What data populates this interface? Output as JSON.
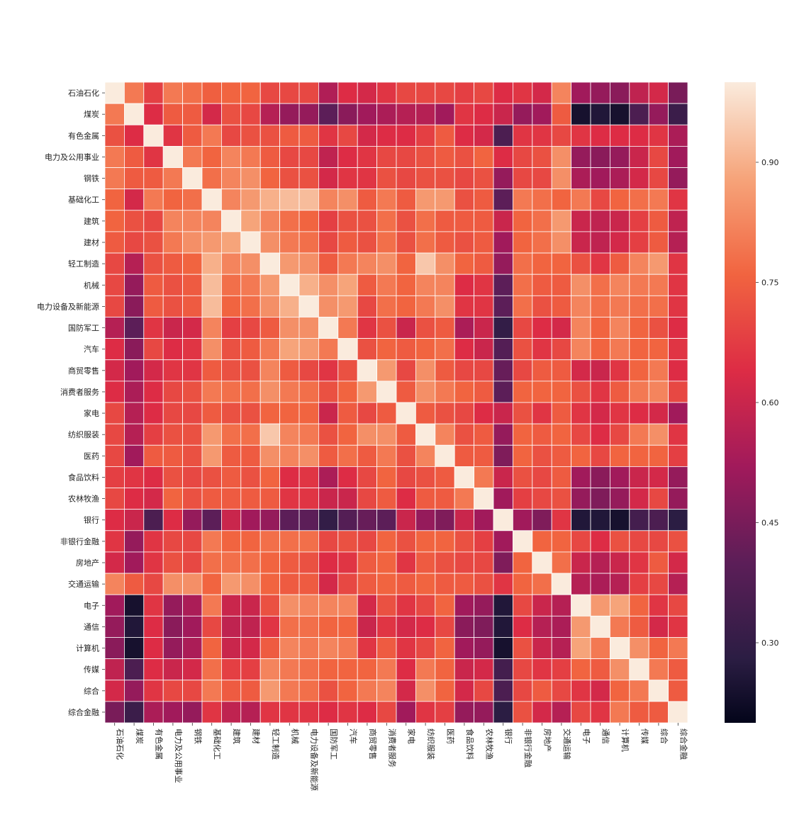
{
  "chart_data": {
    "type": "heatmap",
    "title": "",
    "xlabel": "",
    "ylabel": "",
    "labels": [
      "石油石化",
      "煤炭",
      "有色金属",
      "电力及公用事业",
      "钢铁",
      "基础化工",
      "建筑",
      "建材",
      "轻工制造",
      "机械",
      "电力设备及新能源",
      "国防军工",
      "汽车",
      "商贸零售",
      "消费者服务",
      "家电",
      "纺织服装",
      "医药",
      "食品饮料",
      "农林牧渔",
      "银行",
      "非银行金融",
      "房地产",
      "交通运输",
      "电子",
      "通信",
      "计算机",
      "传媒",
      "综合",
      "综合金融"
    ],
    "colorbar_range": [
      0.2,
      1.0
    ],
    "colorbar_ticks": [
      "0.30",
      "0.45",
      "0.60",
      "0.75",
      "0.90"
    ],
    "colorbar_tick_values": [
      0.3,
      0.45,
      0.6,
      0.75,
      0.9
    ],
    "colormap": "rocket",
    "grid_lines": true,
    "values": [
      [
        1.0,
        0.8,
        0.68,
        0.8,
        0.78,
        0.75,
        0.76,
        0.76,
        0.7,
        0.7,
        0.7,
        0.55,
        0.64,
        0.62,
        0.66,
        0.7,
        0.7,
        0.7,
        0.68,
        0.7,
        0.64,
        0.66,
        0.62,
        0.82,
        0.52,
        0.5,
        0.48,
        0.58,
        0.62,
        0.45
      ],
      [
        0.8,
        1.0,
        0.64,
        0.74,
        0.74,
        0.62,
        0.72,
        0.7,
        0.56,
        0.5,
        0.5,
        0.4,
        0.48,
        0.52,
        0.54,
        0.56,
        0.56,
        0.52,
        0.66,
        0.64,
        0.6,
        0.5,
        0.52,
        0.74,
        0.24,
        0.26,
        0.24,
        0.36,
        0.5,
        0.32
      ],
      [
        0.72,
        0.64,
        1.0,
        0.66,
        0.74,
        0.8,
        0.7,
        0.72,
        0.72,
        0.74,
        0.74,
        0.66,
        0.7,
        0.62,
        0.64,
        0.64,
        0.68,
        0.74,
        0.64,
        0.62,
        0.36,
        0.66,
        0.66,
        0.7,
        0.66,
        0.64,
        0.64,
        0.64,
        0.66,
        0.54
      ],
      [
        0.8,
        0.74,
        0.66,
        1.0,
        0.8,
        0.76,
        0.82,
        0.8,
        0.74,
        0.7,
        0.7,
        0.58,
        0.64,
        0.66,
        0.7,
        0.7,
        0.72,
        0.74,
        0.72,
        0.76,
        0.64,
        0.7,
        0.72,
        0.84,
        0.5,
        0.48,
        0.5,
        0.6,
        0.7,
        0.52
      ],
      [
        0.8,
        0.74,
        0.74,
        0.8,
        1.0,
        0.78,
        0.82,
        0.84,
        0.76,
        0.72,
        0.72,
        0.62,
        0.66,
        0.66,
        0.72,
        0.7,
        0.72,
        0.72,
        0.7,
        0.72,
        0.5,
        0.7,
        0.7,
        0.84,
        0.54,
        0.52,
        0.54,
        0.62,
        0.7,
        0.5
      ],
      [
        0.76,
        0.62,
        0.8,
        0.76,
        0.78,
        1.0,
        0.82,
        0.86,
        0.9,
        0.92,
        0.92,
        0.82,
        0.84,
        0.74,
        0.8,
        0.74,
        0.86,
        0.86,
        0.72,
        0.74,
        0.4,
        0.8,
        0.78,
        0.76,
        0.8,
        0.7,
        0.76,
        0.78,
        0.8,
        0.66
      ],
      [
        0.76,
        0.72,
        0.7,
        0.82,
        0.82,
        0.82,
        1.0,
        0.88,
        0.82,
        0.78,
        0.76,
        0.68,
        0.72,
        0.72,
        0.78,
        0.72,
        0.78,
        0.74,
        0.74,
        0.74,
        0.6,
        0.76,
        0.78,
        0.86,
        0.6,
        0.58,
        0.6,
        0.68,
        0.74,
        0.58
      ],
      [
        0.74,
        0.7,
        0.72,
        0.8,
        0.84,
        0.86,
        0.88,
        1.0,
        0.84,
        0.8,
        0.78,
        0.7,
        0.74,
        0.72,
        0.78,
        0.72,
        0.78,
        0.74,
        0.72,
        0.74,
        0.52,
        0.76,
        0.78,
        0.84,
        0.6,
        0.58,
        0.62,
        0.68,
        0.74,
        0.56
      ],
      [
        0.7,
        0.56,
        0.72,
        0.74,
        0.76,
        0.9,
        0.82,
        0.84,
        1.0,
        0.86,
        0.84,
        0.74,
        0.8,
        0.82,
        0.84,
        0.76,
        0.94,
        0.84,
        0.76,
        0.74,
        0.5,
        0.78,
        0.76,
        0.76,
        0.72,
        0.66,
        0.74,
        0.82,
        0.86,
        0.66
      ],
      [
        0.7,
        0.5,
        0.74,
        0.72,
        0.74,
        0.92,
        0.78,
        0.8,
        0.86,
        1.0,
        0.9,
        0.84,
        0.88,
        0.74,
        0.8,
        0.76,
        0.82,
        0.82,
        0.64,
        0.66,
        0.4,
        0.78,
        0.74,
        0.74,
        0.84,
        0.78,
        0.82,
        0.8,
        0.8,
        0.66
      ],
      [
        0.7,
        0.48,
        0.74,
        0.72,
        0.74,
        0.92,
        0.76,
        0.78,
        0.84,
        0.9,
        1.0,
        0.84,
        0.86,
        0.7,
        0.78,
        0.76,
        0.8,
        0.84,
        0.66,
        0.66,
        0.4,
        0.78,
        0.72,
        0.74,
        0.82,
        0.78,
        0.8,
        0.78,
        0.78,
        0.66
      ],
      [
        0.56,
        0.4,
        0.66,
        0.6,
        0.62,
        0.82,
        0.68,
        0.7,
        0.74,
        0.84,
        0.84,
        1.0,
        0.8,
        0.66,
        0.72,
        0.6,
        0.72,
        0.74,
        0.54,
        0.6,
        0.3,
        0.7,
        0.64,
        0.62,
        0.82,
        0.76,
        0.82,
        0.76,
        0.72,
        0.64
      ],
      [
        0.64,
        0.48,
        0.7,
        0.64,
        0.66,
        0.84,
        0.72,
        0.74,
        0.8,
        0.88,
        0.86,
        0.8,
        1.0,
        0.72,
        0.76,
        0.74,
        0.76,
        0.78,
        0.64,
        0.6,
        0.38,
        0.72,
        0.66,
        0.7,
        0.82,
        0.76,
        0.8,
        0.76,
        0.76,
        0.66
      ],
      [
        0.62,
        0.52,
        0.62,
        0.66,
        0.66,
        0.74,
        0.72,
        0.72,
        0.82,
        0.74,
        0.7,
        0.66,
        0.72,
        1.0,
        0.86,
        0.7,
        0.84,
        0.74,
        0.7,
        0.7,
        0.42,
        0.7,
        0.74,
        0.74,
        0.62,
        0.6,
        0.66,
        0.76,
        0.8,
        0.64
      ],
      [
        0.64,
        0.54,
        0.64,
        0.7,
        0.72,
        0.8,
        0.78,
        0.78,
        0.84,
        0.8,
        0.78,
        0.72,
        0.76,
        0.86,
        1.0,
        0.74,
        0.84,
        0.8,
        0.76,
        0.74,
        0.4,
        0.76,
        0.76,
        0.76,
        0.72,
        0.66,
        0.74,
        0.8,
        0.82,
        0.7
      ],
      [
        0.7,
        0.56,
        0.64,
        0.7,
        0.7,
        0.74,
        0.72,
        0.72,
        0.76,
        0.76,
        0.76,
        0.6,
        0.74,
        0.7,
        0.74,
        1.0,
        0.74,
        0.72,
        0.7,
        0.64,
        0.6,
        0.72,
        0.66,
        0.74,
        0.66,
        0.62,
        0.66,
        0.64,
        0.62,
        0.52
      ],
      [
        0.7,
        0.56,
        0.68,
        0.72,
        0.72,
        0.86,
        0.78,
        0.78,
        0.94,
        0.82,
        0.8,
        0.72,
        0.76,
        0.84,
        0.84,
        0.74,
        1.0,
        0.82,
        0.72,
        0.74,
        0.5,
        0.76,
        0.74,
        0.76,
        0.7,
        0.64,
        0.7,
        0.8,
        0.84,
        0.66
      ],
      [
        0.7,
        0.52,
        0.74,
        0.74,
        0.72,
        0.86,
        0.74,
        0.74,
        0.84,
        0.82,
        0.84,
        0.74,
        0.78,
        0.74,
        0.8,
        0.72,
        0.82,
        1.0,
        0.74,
        0.74,
        0.46,
        0.76,
        0.72,
        0.74,
        0.76,
        0.7,
        0.76,
        0.76,
        0.76,
        0.68
      ],
      [
        0.68,
        0.66,
        0.64,
        0.72,
        0.7,
        0.72,
        0.74,
        0.72,
        0.76,
        0.64,
        0.66,
        0.54,
        0.64,
        0.7,
        0.76,
        0.7,
        0.72,
        0.74,
        1.0,
        0.8,
        0.6,
        0.72,
        0.7,
        0.74,
        0.52,
        0.48,
        0.52,
        0.6,
        0.62,
        0.5
      ],
      [
        0.7,
        0.64,
        0.62,
        0.76,
        0.72,
        0.74,
        0.74,
        0.74,
        0.74,
        0.66,
        0.66,
        0.6,
        0.6,
        0.7,
        0.74,
        0.64,
        0.74,
        0.74,
        0.8,
        1.0,
        0.52,
        0.68,
        0.7,
        0.72,
        0.5,
        0.46,
        0.5,
        0.62,
        0.7,
        0.5
      ],
      [
        0.64,
        0.6,
        0.36,
        0.64,
        0.5,
        0.4,
        0.6,
        0.52,
        0.5,
        0.4,
        0.4,
        0.3,
        0.38,
        0.42,
        0.4,
        0.6,
        0.5,
        0.46,
        0.6,
        0.52,
        1.0,
        0.52,
        0.46,
        0.66,
        0.26,
        0.26,
        0.24,
        0.34,
        0.36,
        0.28
      ],
      [
        0.66,
        0.5,
        0.66,
        0.7,
        0.7,
        0.8,
        0.76,
        0.76,
        0.78,
        0.78,
        0.78,
        0.7,
        0.72,
        0.7,
        0.76,
        0.72,
        0.76,
        0.76,
        0.72,
        0.68,
        0.52,
        1.0,
        0.76,
        0.76,
        0.7,
        0.64,
        0.72,
        0.7,
        0.7,
        0.72
      ],
      [
        0.62,
        0.52,
        0.66,
        0.72,
        0.7,
        0.78,
        0.78,
        0.78,
        0.76,
        0.74,
        0.72,
        0.64,
        0.66,
        0.74,
        0.76,
        0.66,
        0.74,
        0.72,
        0.7,
        0.7,
        0.46,
        0.76,
        1.0,
        0.78,
        0.6,
        0.56,
        0.6,
        0.66,
        0.74,
        0.62
      ],
      [
        0.82,
        0.74,
        0.7,
        0.84,
        0.84,
        0.76,
        0.86,
        0.84,
        0.76,
        0.74,
        0.74,
        0.62,
        0.7,
        0.74,
        0.76,
        0.74,
        0.76,
        0.74,
        0.74,
        0.72,
        0.66,
        0.76,
        0.78,
        1.0,
        0.56,
        0.54,
        0.56,
        0.68,
        0.7,
        0.56
      ],
      [
        0.52,
        0.24,
        0.66,
        0.5,
        0.54,
        0.8,
        0.6,
        0.6,
        0.72,
        0.84,
        0.82,
        0.82,
        0.82,
        0.62,
        0.72,
        0.66,
        0.7,
        0.76,
        0.52,
        0.5,
        0.26,
        0.7,
        0.6,
        0.56,
        1.0,
        0.86,
        0.88,
        0.76,
        0.66,
        0.7
      ],
      [
        0.5,
        0.26,
        0.64,
        0.48,
        0.52,
        0.7,
        0.58,
        0.58,
        0.66,
        0.78,
        0.78,
        0.76,
        0.76,
        0.6,
        0.66,
        0.62,
        0.64,
        0.7,
        0.48,
        0.46,
        0.26,
        0.64,
        0.56,
        0.54,
        0.86,
        1.0,
        0.8,
        0.74,
        0.62,
        0.66
      ],
      [
        0.48,
        0.24,
        0.64,
        0.5,
        0.54,
        0.76,
        0.6,
        0.62,
        0.74,
        0.82,
        0.8,
        0.82,
        0.8,
        0.66,
        0.74,
        0.66,
        0.7,
        0.76,
        0.52,
        0.5,
        0.24,
        0.72,
        0.6,
        0.56,
        0.88,
        0.8,
        1.0,
        0.84,
        0.76,
        0.8
      ],
      [
        0.58,
        0.36,
        0.64,
        0.6,
        0.62,
        0.78,
        0.68,
        0.68,
        0.82,
        0.8,
        0.78,
        0.76,
        0.76,
        0.76,
        0.8,
        0.64,
        0.8,
        0.76,
        0.6,
        0.62,
        0.34,
        0.7,
        0.66,
        0.68,
        0.76,
        0.74,
        0.84,
        1.0,
        0.8,
        0.74
      ],
      [
        0.62,
        0.5,
        0.66,
        0.7,
        0.7,
        0.8,
        0.74,
        0.74,
        0.86,
        0.8,
        0.78,
        0.72,
        0.76,
        0.8,
        0.82,
        0.62,
        0.84,
        0.76,
        0.62,
        0.7,
        0.36,
        0.7,
        0.74,
        0.7,
        0.66,
        0.62,
        0.76,
        0.8,
        1.0,
        0.74
      ],
      [
        0.45,
        0.32,
        0.54,
        0.52,
        0.5,
        0.66,
        0.58,
        0.56,
        0.66,
        0.66,
        0.66,
        0.64,
        0.66,
        0.64,
        0.7,
        0.52,
        0.66,
        0.68,
        0.5,
        0.5,
        0.28,
        0.72,
        0.62,
        0.56,
        0.7,
        0.66,
        0.8,
        0.74,
        0.74,
        1.0
      ]
    ]
  }
}
